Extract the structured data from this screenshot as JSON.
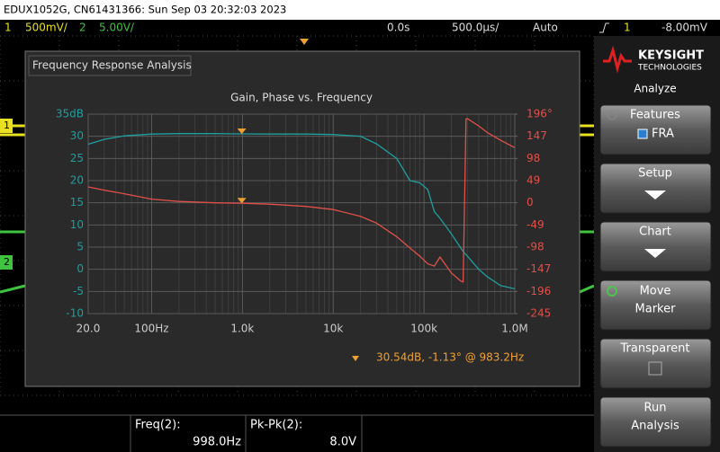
{
  "header": {
    "title": "EDUX1052G, CN61431366: Sun Sep 03 20:32:03 2023",
    "ch1_label": "1",
    "ch1_scale": "500mV/",
    "ch2_label": "2",
    "ch2_scale": "5.00V/",
    "time_offset": "0.0s",
    "time_scale": "500.0µs/",
    "trigger_mode": "Auto",
    "trigger_source": "1",
    "trigger_level": "-8.00mV"
  },
  "waveform_markers": [
    "1",
    "2"
  ],
  "window_title": "Frequency Response Analysis",
  "chart_data": {
    "type": "line",
    "title": "Gain, Phase vs. Frequency",
    "x": [
      20,
      30,
      50,
      100,
      200,
      500,
      1000,
      2000,
      5000,
      10000,
      20000,
      30000,
      50000,
      70000,
      90000,
      110000,
      130000,
      150000,
      200000,
      250000,
      270000,
      290000,
      300000,
      400000,
      500000,
      700000,
      1000000
    ],
    "xlim": [
      20,
      1000000
    ],
    "log_x": true,
    "minor_grid": true,
    "xticks": [
      {
        "value": 20,
        "label": "20.0"
      },
      {
        "value": 100,
        "label": "100Hz"
      },
      {
        "value": 1000,
        "label": "1.0k"
      },
      {
        "value": 10000,
        "label": "10k"
      },
      {
        "value": 100000,
        "label": "100k"
      },
      {
        "value": 1000000,
        "label": "1.0M"
      }
    ],
    "ylim": [
      -10,
      35
    ],
    "yticks": [
      {
        "value": 35,
        "label": "35dB"
      },
      30,
      25,
      20,
      15,
      10,
      5,
      0,
      -5,
      -10
    ],
    "y2lim": [
      -245,
      196
    ],
    "y2ticks": [
      {
        "value": 196,
        "label": "196°"
      },
      147,
      98,
      49,
      0,
      -49,
      -98,
      -147,
      -196,
      -245
    ],
    "series": [
      {
        "name": "Gain",
        "color": "#1f9e9e",
        "values": [
          28.2,
          29.3,
          30.1,
          30.5,
          30.6,
          30.6,
          30.54,
          30.5,
          30.5,
          30.4,
          30.0,
          28.3,
          25,
          20,
          19.5,
          18,
          13,
          11.5,
          8,
          5,
          4,
          3.3,
          3,
          0,
          -1.7,
          -3.7,
          -4.4
        ]
      },
      {
        "name": "Phase",
        "color": "#e0504a",
        "axis": "y2",
        "values": [
          35,
          28,
          20,
          8,
          3,
          0,
          -1.13,
          -3,
          -8,
          -15,
          -30,
          -45,
          -75,
          -100,
          -118,
          -135,
          -140,
          -120,
          -155,
          -172,
          -175,
          185,
          186,
          170,
          155,
          138,
          122
        ]
      }
    ],
    "marker": {
      "x": 983.2,
      "gain": 30.54,
      "phase": -1.13,
      "label": "30.54dB, -1.13° @ 983.2Hz"
    },
    "grid": true
  },
  "sidebar": {
    "brand": "KEYSIGHT",
    "brand_sub": "TECHNOLOGIES",
    "menu_title": "Analyze",
    "buttons": [
      {
        "lines": [
          "Features"
        ],
        "option": "FRA"
      },
      {
        "lines": [
          "Setup"
        ]
      },
      {
        "lines": [
          "Chart"
        ]
      },
      {
        "lines": [
          "Move",
          "Marker"
        ]
      },
      {
        "lines": [
          "Transparent"
        ]
      },
      {
        "lines": [
          "Run",
          "Analysis"
        ]
      }
    ]
  },
  "measurements": [
    {
      "label": "Freq(2):",
      "value": "998.0Hz"
    },
    {
      "label": "Pk-Pk(2):",
      "value": "8.0V"
    }
  ]
}
